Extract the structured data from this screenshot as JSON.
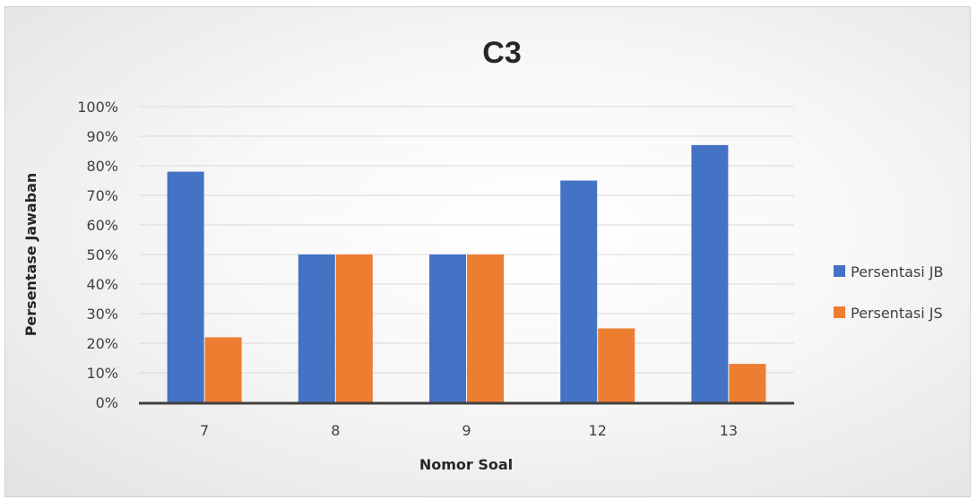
{
  "chart_data": {
    "type": "bar",
    "title": "C3",
    "xlabel": "Nomor Soal",
    "ylabel": "Persentase Jawaban",
    "categories": [
      "7",
      "8",
      "9",
      "12",
      "13"
    ],
    "series": [
      {
        "name": "Persentasi JB",
        "values": [
          78,
          50,
          50,
          75,
          87
        ]
      },
      {
        "name": "Persentasi JS",
        "values": [
          22,
          50,
          50,
          25,
          13
        ]
      }
    ],
    "ylim": [
      0,
      100
    ],
    "yticks": [
      "0%",
      "10%",
      "20%",
      "30%",
      "40%",
      "50%",
      "60%",
      "70%",
      "80%",
      "90%",
      "100%"
    ],
    "grid": true,
    "legend": "right",
    "colors": {
      "series": [
        "#4472c4",
        "#ed7d31"
      ],
      "grid": "#d9d9d9",
      "axis": "#404040"
    }
  }
}
